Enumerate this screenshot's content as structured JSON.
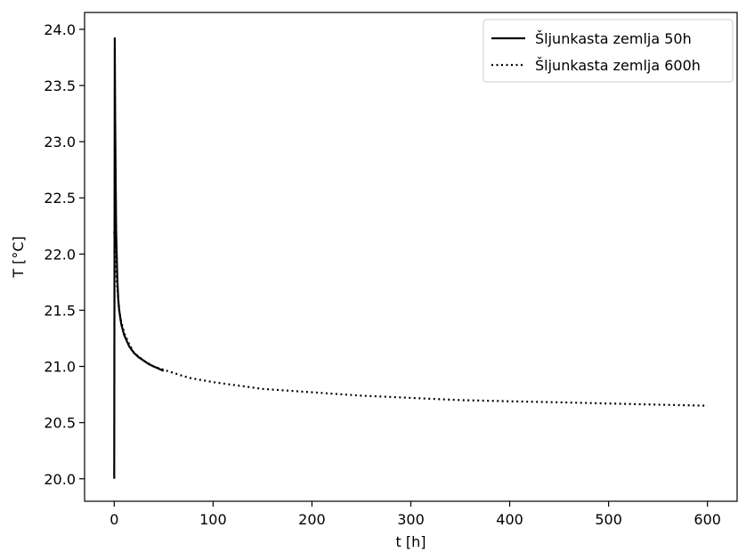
{
  "chart_data": {
    "type": "line",
    "xlabel": "t [h]",
    "ylabel": "T [°C]",
    "xlim": [
      -30,
      630
    ],
    "ylim": [
      19.8,
      24.15
    ],
    "xticks": [
      0,
      100,
      200,
      300,
      400,
      500,
      600
    ],
    "xtick_labels": [
      "0",
      "100",
      "200",
      "300",
      "400",
      "500",
      "600"
    ],
    "yticks": [
      20.0,
      20.5,
      21.0,
      21.5,
      22.0,
      22.5,
      23.0,
      23.5,
      24.0
    ],
    "ytick_labels": [
      "20.0",
      "20.5",
      "21.0",
      "21.5",
      "22.0",
      "22.5",
      "23.0",
      "23.5",
      "24.0"
    ],
    "legend_position": "top-right",
    "colors": {
      "line": "#000000",
      "background": "#ffffff"
    },
    "series": [
      {
        "name": "Šljunkasta zemlja 50h",
        "style": "solid",
        "x": [
          0,
          0.5,
          1,
          1.5,
          2,
          3,
          4,
          5,
          7,
          10,
          15,
          20,
          25,
          30,
          35,
          40,
          45,
          50
        ],
        "y": [
          20.0,
          23.92,
          23.2,
          22.6,
          22.2,
          21.8,
          21.6,
          21.5,
          21.38,
          21.28,
          21.18,
          21.12,
          21.08,
          21.05,
          21.02,
          21.0,
          20.98,
          20.96
        ]
      },
      {
        "name": "Šljunkasta zemlja 600h",
        "style": "dotted",
        "x": [
          0,
          1,
          2,
          3,
          5,
          7,
          10,
          15,
          20,
          30,
          40,
          50,
          75,
          100,
          150,
          200,
          250,
          300,
          350,
          400,
          450,
          500,
          550,
          600
        ],
        "y": [
          22.2,
          22.0,
          21.85,
          21.7,
          21.5,
          21.4,
          21.3,
          21.2,
          21.12,
          21.05,
          21.0,
          20.97,
          20.9,
          20.86,
          20.8,
          20.77,
          20.74,
          20.72,
          20.7,
          20.69,
          20.68,
          20.67,
          20.66,
          20.65
        ]
      }
    ]
  }
}
